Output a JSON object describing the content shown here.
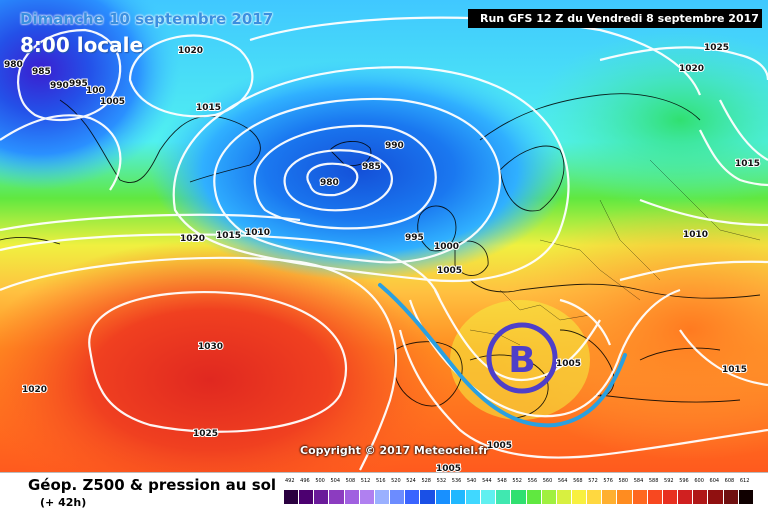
{
  "map": {
    "date_label": "Dimanche 10 septembre 2017",
    "time_label": "8:00 locale",
    "run_label": "Run GFS 12 Z du Vendredi 8 septembre 2017",
    "copyright": "Copyright © 2017 Meteociel.fr",
    "product_label": "Géop. Z500 & pression au sol",
    "lead_label": "(+ 42h)",
    "low_symbol": "B",
    "isobar_labels": [
      "980",
      "985",
      "990",
      "995",
      "100",
      "1005",
      "1015",
      "1020",
      "980",
      "985",
      "990",
      "995",
      "1000",
      "1005",
      "1010",
      "1015",
      "1020",
      "1030",
      "1025",
      "1020",
      "1005",
      "1005",
      "1025",
      "1020",
      "1010",
      "1015",
      "1015",
      "1005"
    ],
    "scale_ticks": [
      "492",
      "496",
      "500",
      "504",
      "508",
      "512",
      "516",
      "520",
      "524",
      "528",
      "532",
      "536",
      "540",
      "544",
      "548",
      "552",
      "556",
      "560",
      "564",
      "568",
      "572",
      "576",
      "580",
      "584",
      "588",
      "592",
      "596",
      "600",
      "604",
      "608",
      "612"
    ],
    "scale_colors": [
      "#2a0040",
      "#4c0070",
      "#6a1a9a",
      "#8c3cc0",
      "#a060e0",
      "#b080f0",
      "#9ab0ff",
      "#6c8cff",
      "#3a64ff",
      "#1a50e6",
      "#1890ff",
      "#20b8ff",
      "#40d8ff",
      "#60f0f0",
      "#40e8b0",
      "#30e070",
      "#60e840",
      "#a0f040",
      "#d8f040",
      "#f8f040",
      "#ffd840",
      "#ffb030",
      "#ff8c20",
      "#ff6820",
      "#f84820",
      "#e83020",
      "#d02020",
      "#b01818",
      "#901010",
      "#701010",
      "#100000"
    ]
  }
}
